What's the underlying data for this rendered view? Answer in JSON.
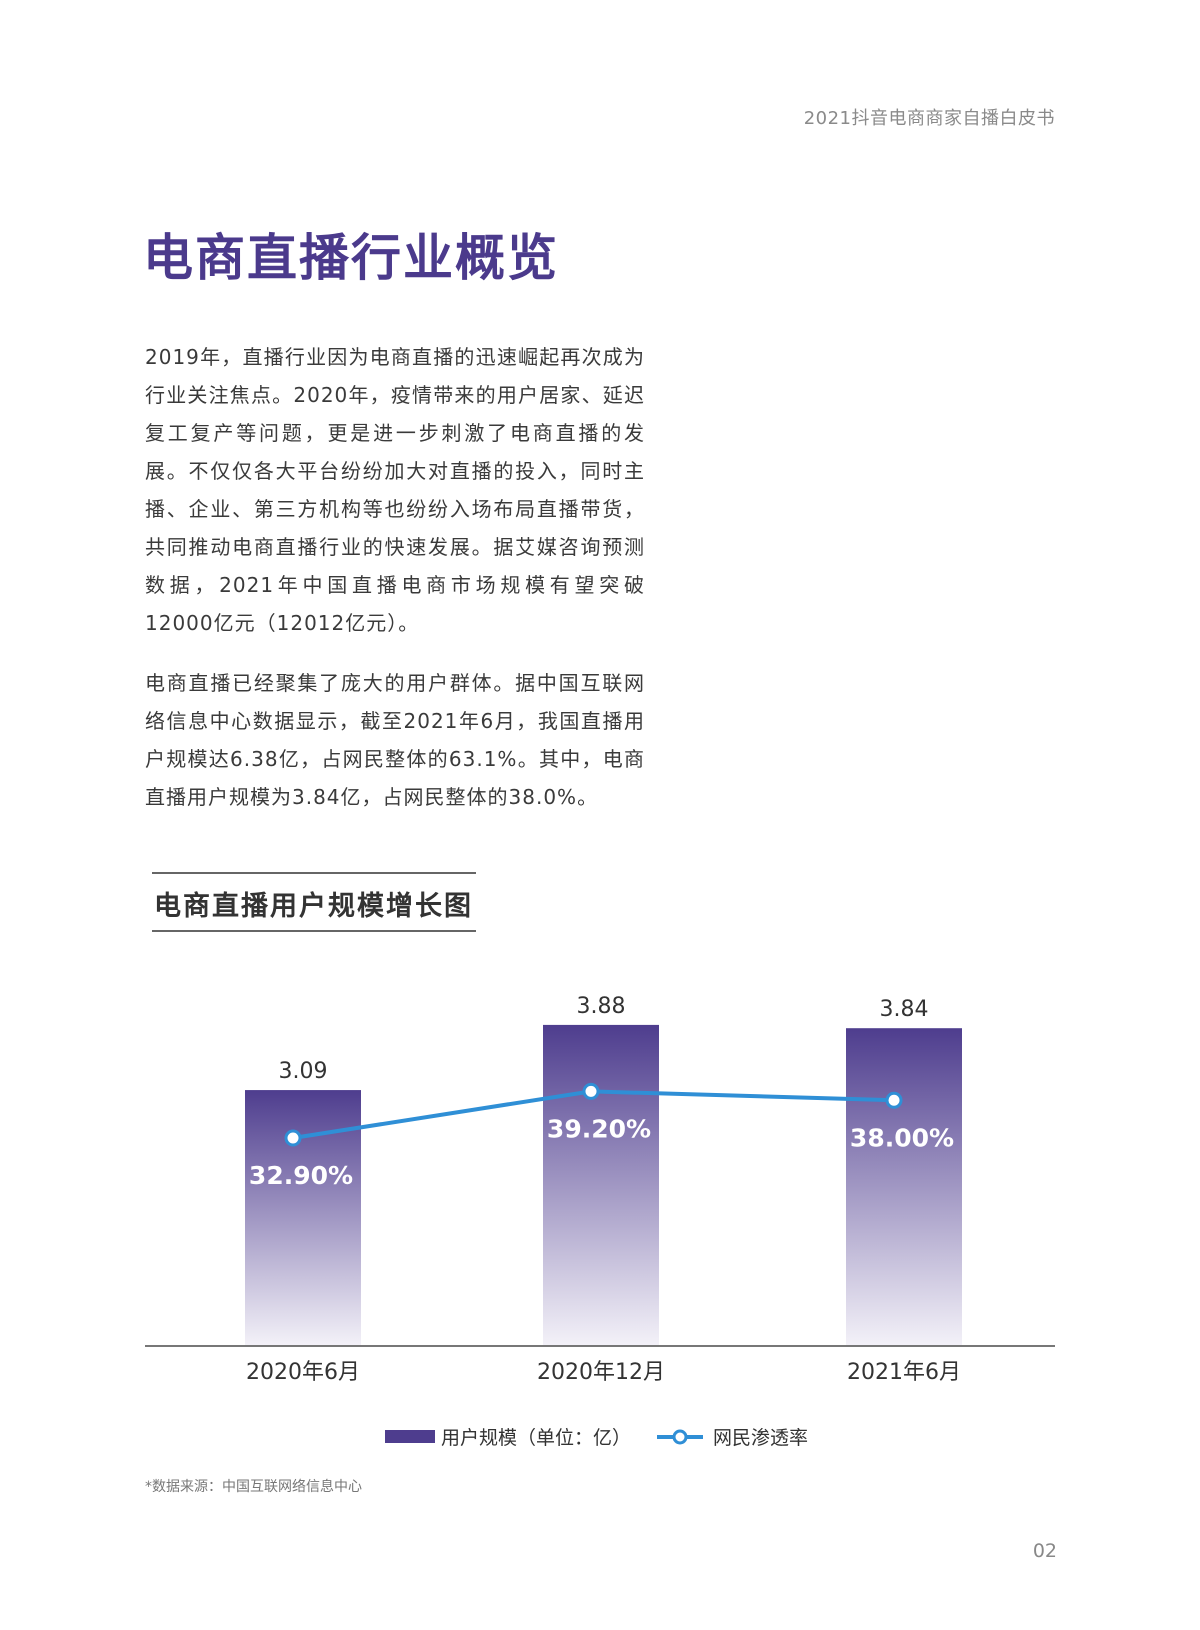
{
  "header": {
    "doc_title": "2021抖音电商商家自播白皮书"
  },
  "page_title": "电商直播行业概览",
  "paragraphs": [
    "2019年，直播行业因为电商直播的迅速崛起再次成为行业关注焦点。2020年，疫情带来的用户居家、延迟复工复产等问题，更是进一步刺激了电商直播的发展。不仅仅各大平台纷纷加大对直播的投入，同时主播、企业、第三方机构等也纷纷入场布局直播带货，共同推动电商直播行业的快速发展。据艾媒咨询预测数据，2021年中国直播电商市场规模有望突破12000亿元（12012亿元）。",
    "电商直播已经聚集了庞大的用户群体。据中国互联网络信息中心数据显示，截至2021年6月，我国直播用户规模达6.38亿，占网民整体的63.1%。其中，电商直播用户规模为3.84亿，占网民整体的38.0%。"
  ],
  "chart_data": {
    "type": "bar",
    "title": "电商直播用户规模增长图",
    "categories": [
      "2020年6月",
      "2020年12月",
      "2021年6月"
    ],
    "series": [
      {
        "name": "用户规模（单位：亿）",
        "type": "bar",
        "values": [
          3.09,
          3.88,
          3.84
        ],
        "labels": [
          "3.09",
          "3.88",
          "3.84"
        ]
      },
      {
        "name": "网民渗透率",
        "type": "line",
        "values": [
          32.9,
          39.2,
          38.0
        ],
        "labels": [
          "32.90%",
          "39.20%",
          "38.00%"
        ]
      }
    ],
    "ylim": [
      0,
      4
    ],
    "grid": false,
    "legend": "bottom-center",
    "colors": {
      "bar_top": "#4e3d8e",
      "bar_bottom": "#f3f1f8",
      "line": "#2f8fd6",
      "marker_fill": "#ffffff"
    }
  },
  "source_note": "*数据来源：中国互联网络信息中心",
  "page_number": "02"
}
